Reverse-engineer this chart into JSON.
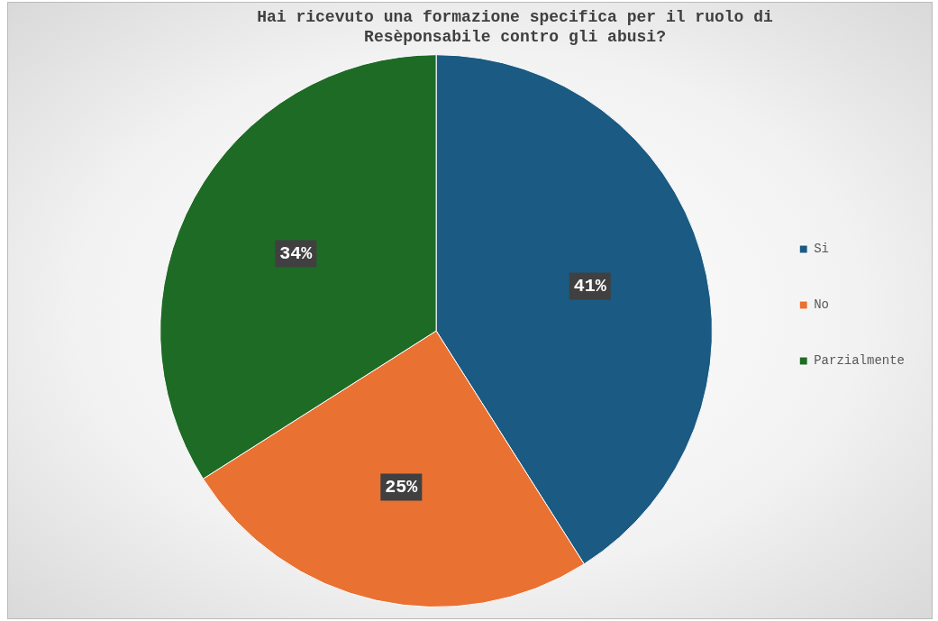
{
  "chart_data": {
    "type": "pie",
    "title": "Hai ricevuto una formazione specifica per il ruolo di Resèponsabile contro gli abusi?",
    "categories": [
      "Si",
      "No",
      "Parzialmente"
    ],
    "values": [
      41,
      25,
      34
    ],
    "value_labels": [
      "41%",
      "25%",
      "34%"
    ],
    "colors": [
      "#1b5a82",
      "#e97132",
      "#1e6b26"
    ],
    "legend": "right"
  }
}
